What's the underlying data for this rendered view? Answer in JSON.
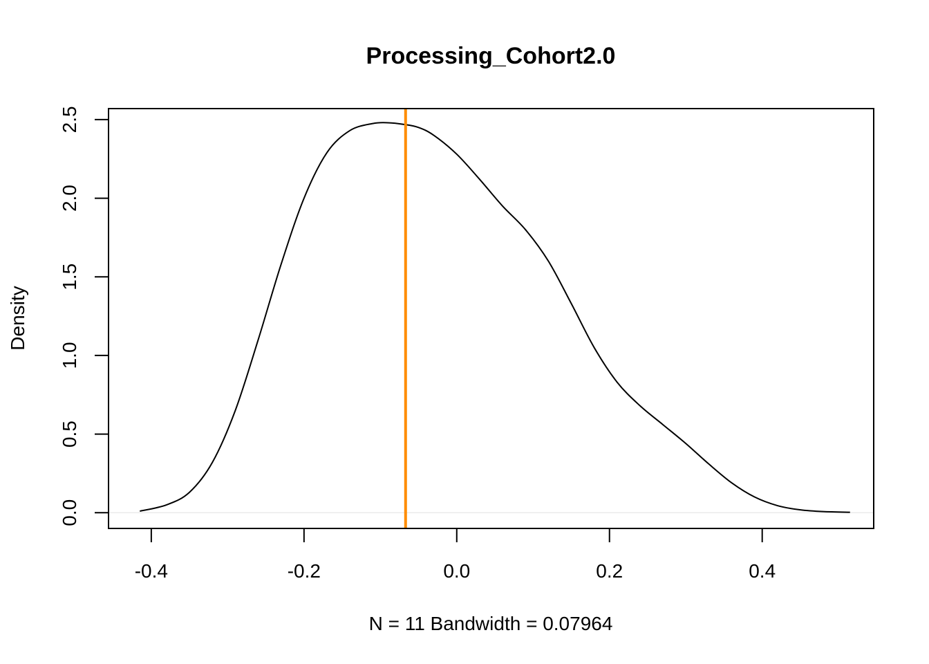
{
  "chart_data": {
    "type": "line",
    "title": "Processing_Cohort2.0",
    "xlabel": "N = 11   Bandwidth = 0.07964",
    "ylabel": "Density",
    "xlim": [
      -0.456,
      0.546
    ],
    "ylim": [
      -0.1,
      2.57
    ],
    "x_ticks": [
      -0.4,
      -0.2,
      0.0,
      0.2,
      0.4
    ],
    "x_tick_labels": [
      "-0.4",
      "-0.2",
      "0.0",
      "0.2",
      "0.4"
    ],
    "y_ticks": [
      0.0,
      0.5,
      1.0,
      1.5,
      2.0,
      2.5
    ],
    "y_tick_labels": [
      "0.0",
      "0.5",
      "1.0",
      "1.5",
      "2.0",
      "2.5"
    ],
    "grid": false,
    "series": [
      {
        "color": "#000000",
        "x": [
          -0.415,
          -0.38,
          -0.35,
          -0.32,
          -0.29,
          -0.26,
          -0.23,
          -0.2,
          -0.17,
          -0.14,
          -0.11,
          -0.09,
          -0.07,
          -0.05,
          -0.03,
          0.0,
          0.03,
          0.06,
          0.09,
          0.12,
          0.15,
          0.18,
          0.21,
          0.24,
          0.27,
          0.3,
          0.33,
          0.36,
          0.39,
          0.42,
          0.45,
          0.48,
          0.515
        ],
        "y": [
          0.01,
          0.05,
          0.13,
          0.32,
          0.65,
          1.1,
          1.58,
          2.0,
          2.29,
          2.43,
          2.475,
          2.48,
          2.47,
          2.45,
          2.4,
          2.28,
          2.12,
          1.95,
          1.8,
          1.6,
          1.33,
          1.05,
          0.83,
          0.68,
          0.56,
          0.44,
          0.31,
          0.19,
          0.1,
          0.045,
          0.018,
          0.007,
          0.003
        ]
      }
    ],
    "vline": {
      "x": -0.067,
      "color": "#ff8c00"
    },
    "baseline": {
      "y": 0,
      "color": "#ebebeb"
    }
  }
}
